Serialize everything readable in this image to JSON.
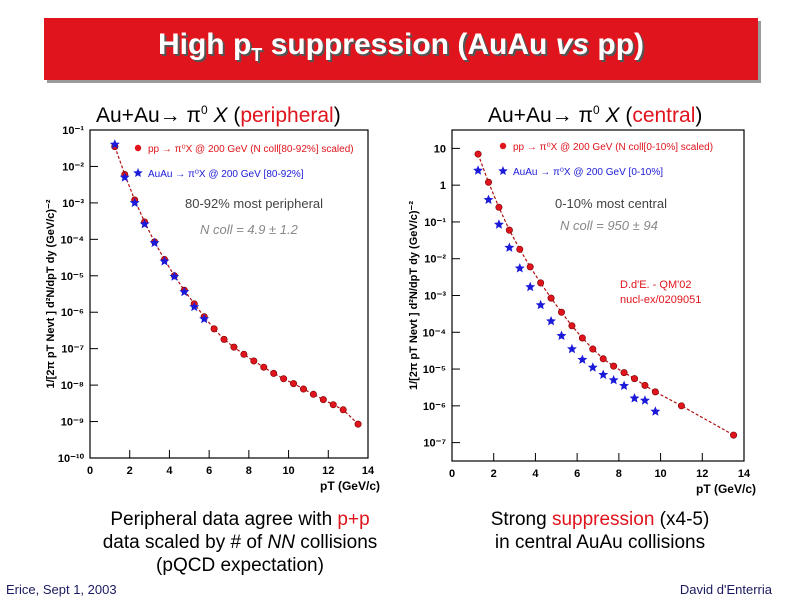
{
  "slide": {
    "title_part1": "High p",
    "title_sub": "T",
    "title_part2": " suppression (AuAu ",
    "title_italic": "vs",
    "title_part3": " pp)",
    "footer_left": "Erice, Sept 1, 2003",
    "footer_right": "David d'Enterria"
  },
  "plots": [
    {
      "heading_prefix": "Au+Au→ π",
      "heading_sup": "0",
      "heading_x": " X",
      "heading_qual": "peripheral",
      "caption": [
        "Peripheral data agree with ",
        "p+p",
        "data scaled by # of ",
        "NN",
        " collisions",
        "(pQCD expectation)"
      ]
    },
    {
      "heading_prefix": "Au+Au→ π",
      "heading_sup": "0",
      "heading_x": " X",
      "heading_qual": "central",
      "caption": [
        "Strong ",
        "suppression",
        " (x4-5)",
        "in central AuAu collisions"
      ]
    }
  ],
  "chart_data": [
    {
      "type": "scatter",
      "xlabel": "p_T (GeV/c)",
      "ylabel": "1/[2π p_T N_evt ] d²N/dp_T dy (GeV/c)⁻²",
      "xlim": [
        0,
        14
      ],
      "ylim_log10": [
        -10,
        -1
      ],
      "log_y": true,
      "x_ticks": [
        "0",
        "2",
        "4",
        "6",
        "8",
        "10",
        "12",
        "14"
      ],
      "y_ticks": [
        "10⁻¹⁰",
        "10⁻⁹",
        "10⁻⁸",
        "10⁻⁷",
        "10⁻⁶",
        "10⁻⁵",
        "10⁻⁴",
        "10⁻³",
        "10⁻²",
        "10⁻¹"
      ],
      "legend": [
        {
          "marker": "circle",
          "color": "#e0141c",
          "label": "pp  → π⁰X @ 200 GeV (N_coll[80-92%] scaled)"
        },
        {
          "marker": "star",
          "color": "#1a1ad8",
          "label": "AuAu  → π⁰X @ 200 GeV [80-92%]"
        }
      ],
      "annotations": [
        "80-92% most peripheral",
        "N_coll = 4.9  ± 1.2"
      ],
      "series": [
        {
          "name": "pp",
          "color": "#e0141c",
          "x": [
            1.25,
            1.75,
            2.25,
            2.75,
            3.25,
            3.75,
            4.25,
            4.75,
            5.25,
            5.75,
            6.25,
            6.75,
            7.25,
            7.75,
            8.25,
            8.75,
            9.25,
            9.75,
            10.25,
            10.75,
            11.25,
            11.75,
            12.25,
            12.75,
            13.5
          ],
          "y": [
            0.035,
            0.006,
            0.0012,
            0.0003,
            8.5e-05,
            2.8e-05,
            1e-05,
            4e-06,
            1.7e-06,
            7.5e-07,
            3.5e-07,
            1.8e-07,
            1.1e-07,
            7e-08,
            4.6e-08,
            3.1e-08,
            2.1e-08,
            1.5e-08,
            1.1e-08,
            7.8e-09,
            5.6e-09,
            4e-09,
            2.9e-09,
            2.1e-09,
            8.5e-10
          ]
        },
        {
          "name": "AuAu",
          "color": "#1a1ad8",
          "x": [
            1.25,
            1.75,
            2.25,
            2.75,
            3.25,
            3.75,
            4.25,
            4.75,
            5.25,
            5.75
          ],
          "y": [
            0.04,
            0.005,
            0.001,
            0.00026,
            8e-05,
            2.5e-05,
            9.5e-06,
            3.6e-06,
            1.4e-06,
            6.5e-07
          ]
        }
      ]
    },
    {
      "type": "scatter",
      "xlabel": "p_T (GeV/c)",
      "ylabel": "1/[2π p_T N_evt ] d²N/dp_T dy (GeV/c)⁻²",
      "xlim": [
        0,
        14
      ],
      "ylim_log10": [
        -7.5,
        1.5
      ],
      "log_y": true,
      "x_ticks": [
        "0",
        "2",
        "4",
        "6",
        "8",
        "10",
        "12",
        "14"
      ],
      "y_ticks": [
        "10⁻⁷",
        "10⁻⁶",
        "10⁻⁵",
        "10⁻⁴",
        "10⁻³",
        "10⁻²",
        "10⁻¹",
        "1",
        "10"
      ],
      "legend": [
        {
          "marker": "circle",
          "color": "#e0141c",
          "label": "pp → π⁰X @ 200 GeV (N_coll[0-10%] scaled)"
        },
        {
          "marker": "star",
          "color": "#1a1ad8",
          "label": "AuAu  → π⁰X @ 200 GeV [0-10%]"
        }
      ],
      "annotations": [
        "0-10% most central",
        "N_coll = 950 ± 94",
        "D.d'E. - QM'02",
        "nucl-ex/0209051"
      ],
      "series": [
        {
          "name": "pp",
          "color": "#e0141c",
          "x": [
            1.25,
            1.75,
            2.25,
            2.75,
            3.25,
            3.75,
            4.25,
            4.75,
            5.25,
            5.75,
            6.25,
            6.75,
            7.25,
            7.75,
            8.25,
            8.75,
            9.25,
            9.75,
            11.0,
            13.5
          ],
          "y": [
            7.0,
            1.2,
            0.25,
            0.06,
            0.018,
            0.006,
            0.0022,
            0.00085,
            0.00035,
            0.00015,
            7e-05,
            3.5e-05,
            1.9e-05,
            1.2e-05,
            8e-06,
            5.5e-06,
            3.6e-06,
            2.4e-06,
            1e-06,
            1.6e-07
          ]
        },
        {
          "name": "AuAu",
          "color": "#1a1ad8",
          "x": [
            1.25,
            1.75,
            2.25,
            2.75,
            3.25,
            3.75,
            4.25,
            4.75,
            5.25,
            5.75,
            6.25,
            6.75,
            7.25,
            7.75,
            8.25,
            8.75,
            9.25,
            9.75
          ],
          "y": [
            2.5,
            0.4,
            0.085,
            0.02,
            0.0055,
            0.0017,
            0.00055,
            0.0002,
            8e-05,
            3.5e-05,
            1.8e-05,
            1.1e-05,
            7e-06,
            5e-06,
            3.5e-06,
            1.6e-06,
            1.4e-06,
            7e-07
          ]
        }
      ]
    }
  ]
}
